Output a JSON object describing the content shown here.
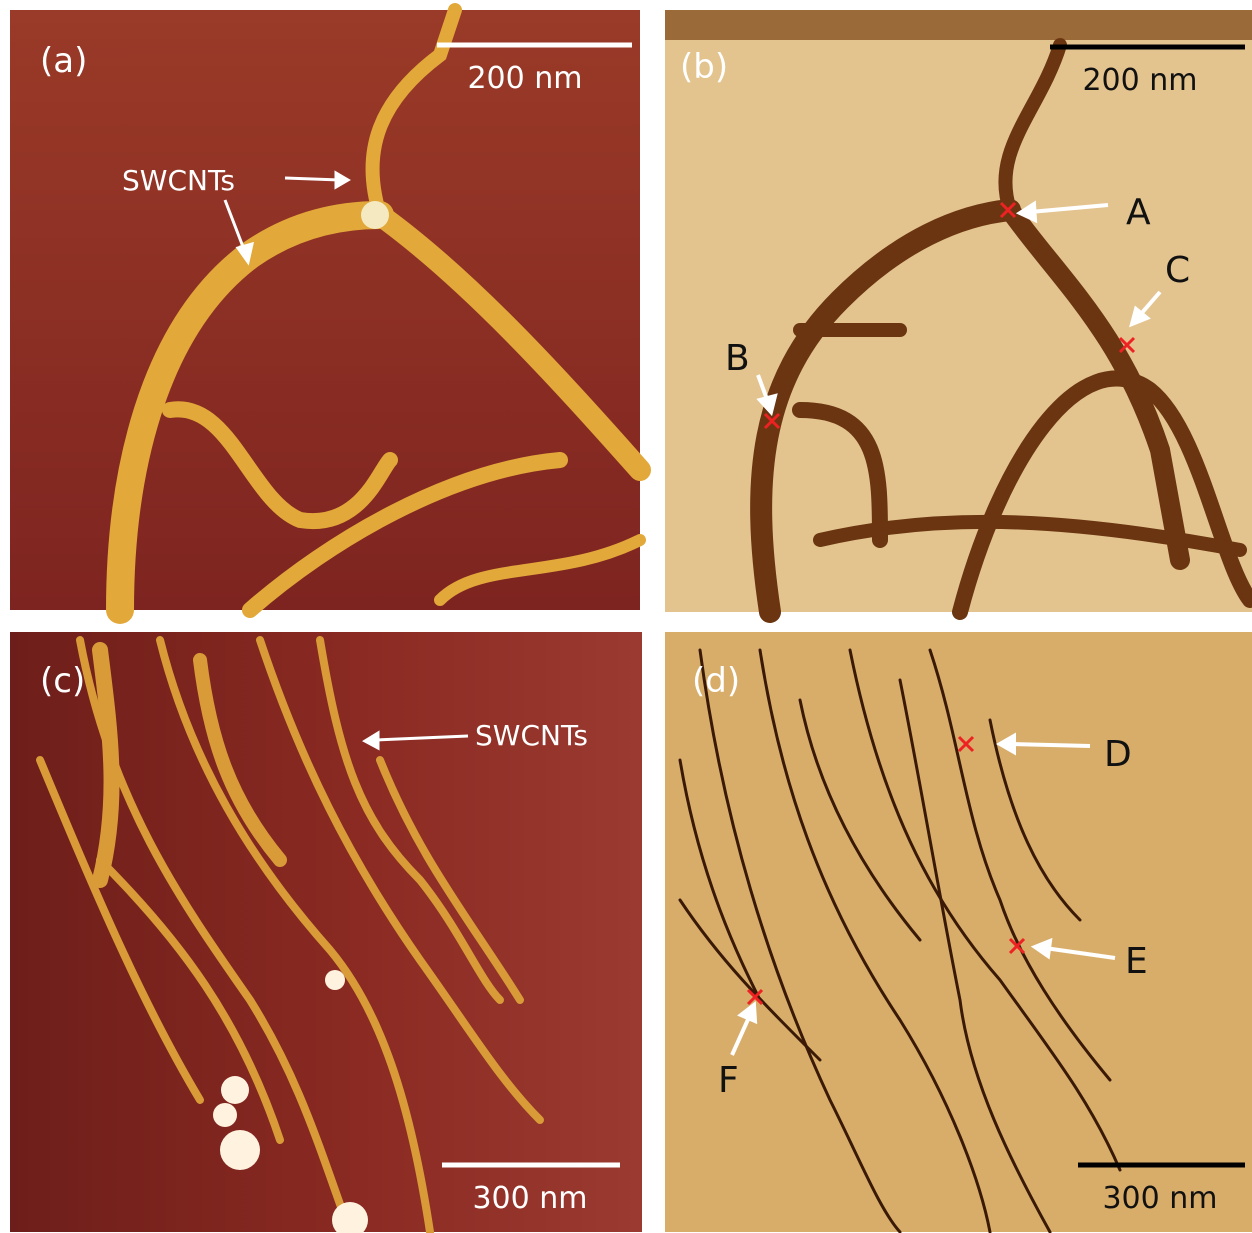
{
  "panels": [
    {
      "label": "(a)",
      "scale_bar": "200 nm",
      "annotation": "SWCNTs"
    },
    {
      "label": "(b)",
      "scale_bar": "200 nm",
      "markers": [
        "A",
        "B",
        "C"
      ]
    },
    {
      "label": "(c)",
      "scale_bar": "300 nm",
      "annotation": "SWCNTs"
    },
    {
      "label": "(d)",
      "scale_bar": "300 nm",
      "markers": [
        "D",
        "E",
        "F"
      ]
    }
  ]
}
